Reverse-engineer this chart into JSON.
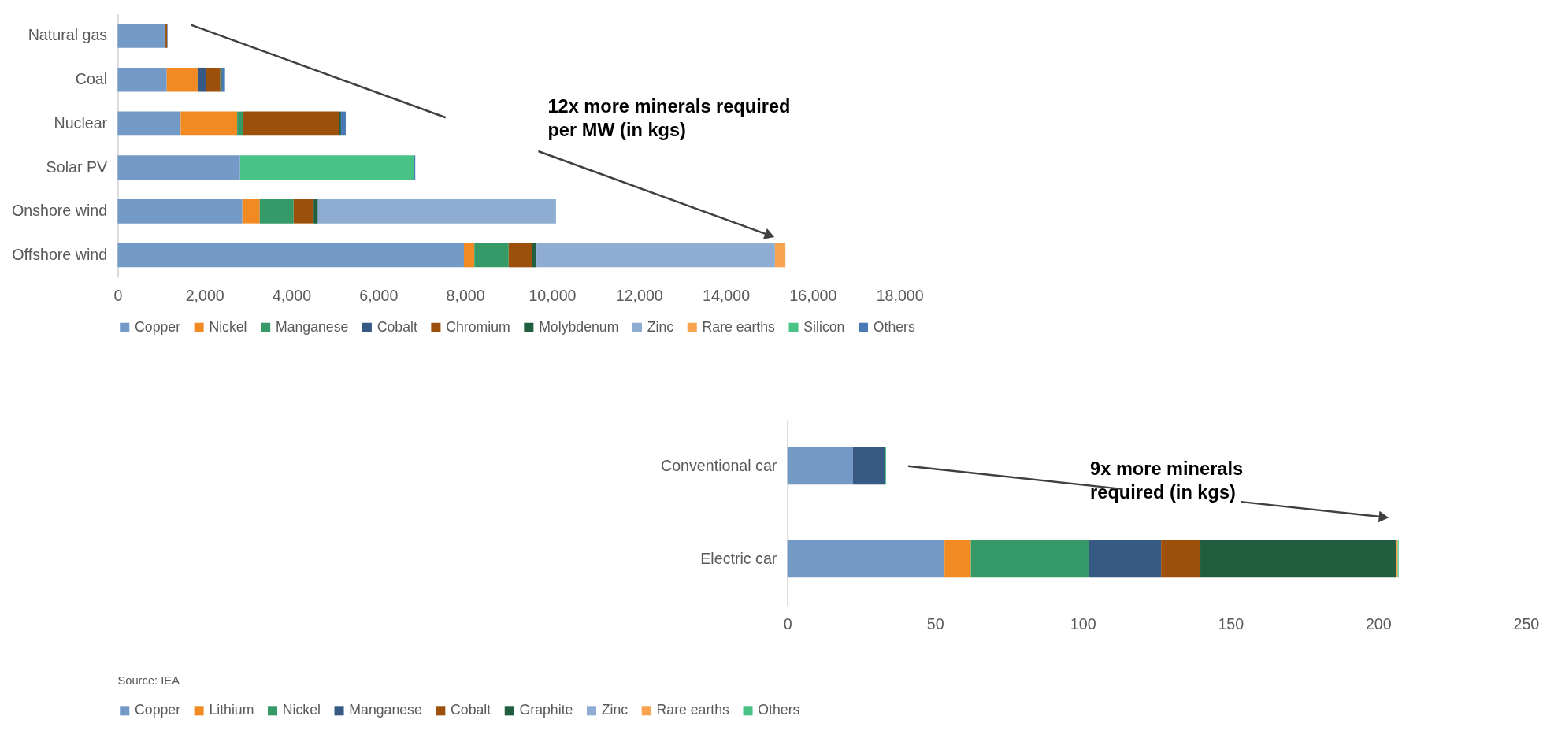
{
  "chart_data": [
    {
      "type": "bar",
      "orientation": "horizontal",
      "stacked": true,
      "categories": [
        "Natural gas",
        "Coal",
        "Nuclear",
        "Solar PV",
        "Onshore wind",
        "Offshore wind"
      ],
      "series": [
        {
          "name": "Copper",
          "color": "#7399c6",
          "values": [
            1080,
            1130,
            1450,
            2800,
            2870,
            7970
          ]
        },
        {
          "name": "Nickel",
          "color": "#f28a24",
          "values": [
            20,
            710,
            1300,
            null,
            400,
            240
          ]
        },
        {
          "name": "Manganese",
          "color": "#359a68",
          "values": [
            null,
            null,
            140,
            null,
            780,
            790
          ]
        },
        {
          "name": "Cobalt",
          "color": "#375a84",
          "values": [
            null,
            200,
            null,
            null,
            null,
            null
          ]
        },
        {
          "name": "Chromium",
          "color": "#9c500b",
          "values": [
            40,
            320,
            2200,
            null,
            460,
            540
          ]
        },
        {
          "name": "Molybdenum",
          "color": "#215e3f",
          "values": [
            null,
            40,
            50,
            null,
            100,
            100
          ]
        },
        {
          "name": "Zinc",
          "color": "#8fadd3",
          "values": [
            null,
            null,
            null,
            20,
            5480,
            5490
          ]
        },
        {
          "name": "Rare earths",
          "color": "#f7a350",
          "values": [
            null,
            null,
            null,
            null,
            null,
            240
          ]
        },
        {
          "name": "Silicon",
          "color": "#48c285",
          "values": [
            null,
            null,
            null,
            3990,
            null,
            null
          ]
        },
        {
          "name": "Others",
          "color": "#4a7ab5",
          "values": [
            10,
            70,
            110,
            40,
            null,
            null
          ]
        }
      ],
      "xlim": [
        0,
        18000
      ],
      "xticks": [
        0,
        {
          "value": 2000,
          "label": "2,000"
        },
        {
          "value": 4000,
          "label": "4,000"
        },
        {
          "value": 6000,
          "label": "6,000"
        },
        {
          "value": 8000,
          "label": "8,000"
        },
        {
          "value": 10000,
          "label": "10,000"
        },
        {
          "value": 12000,
          "label": "12,000"
        },
        {
          "value": 14000,
          "label": "14,000"
        },
        {
          "value": 16000,
          "label": "16,000"
        },
        {
          "value": 18000,
          "label": "18,000"
        }
      ],
      "grid": false,
      "legend": "bottom",
      "annotations": [
        "12x more minerals required\nper MW (in kgs)"
      ]
    },
    {
      "type": "bar",
      "orientation": "horizontal",
      "stacked": true,
      "categories": [
        "Conventional car",
        "Electric car"
      ],
      "series": [
        {
          "name": "Copper",
          "color": "#7399c6",
          "values": [
            22.1,
            53.2
          ]
        },
        {
          "name": "Lithium",
          "color": "#f28a24",
          "values": [
            null,
            8.9
          ]
        },
        {
          "name": "Nickel",
          "color": "#359a68",
          "values": [
            null,
            39.9
          ]
        },
        {
          "name": "Manganese",
          "color": "#375a84",
          "values": [
            11.0,
            24.5
          ]
        },
        {
          "name": "Cobalt",
          "color": "#9c500b",
          "values": [
            null,
            13.3
          ]
        },
        {
          "name": "Graphite",
          "color": "#215e3f",
          "values": [
            null,
            66.3
          ]
        },
        {
          "name": "Zinc",
          "color": "#8fadd3",
          "values": [
            null,
            null
          ]
        },
        {
          "name": "Rare earths",
          "color": "#f7a350",
          "values": [
            null,
            0.5
          ]
        },
        {
          "name": "Others",
          "color": "#48c285",
          "values": [
            0.3,
            0.3
          ]
        }
      ],
      "xlim": [
        0,
        250
      ],
      "xticks": [
        0,
        50,
        100,
        150,
        200,
        250
      ],
      "grid": false,
      "legend": "bottom",
      "annotations": [
        "9x more minerals\nrequired (in kgs)",
        "Source: IEA"
      ]
    }
  ]
}
